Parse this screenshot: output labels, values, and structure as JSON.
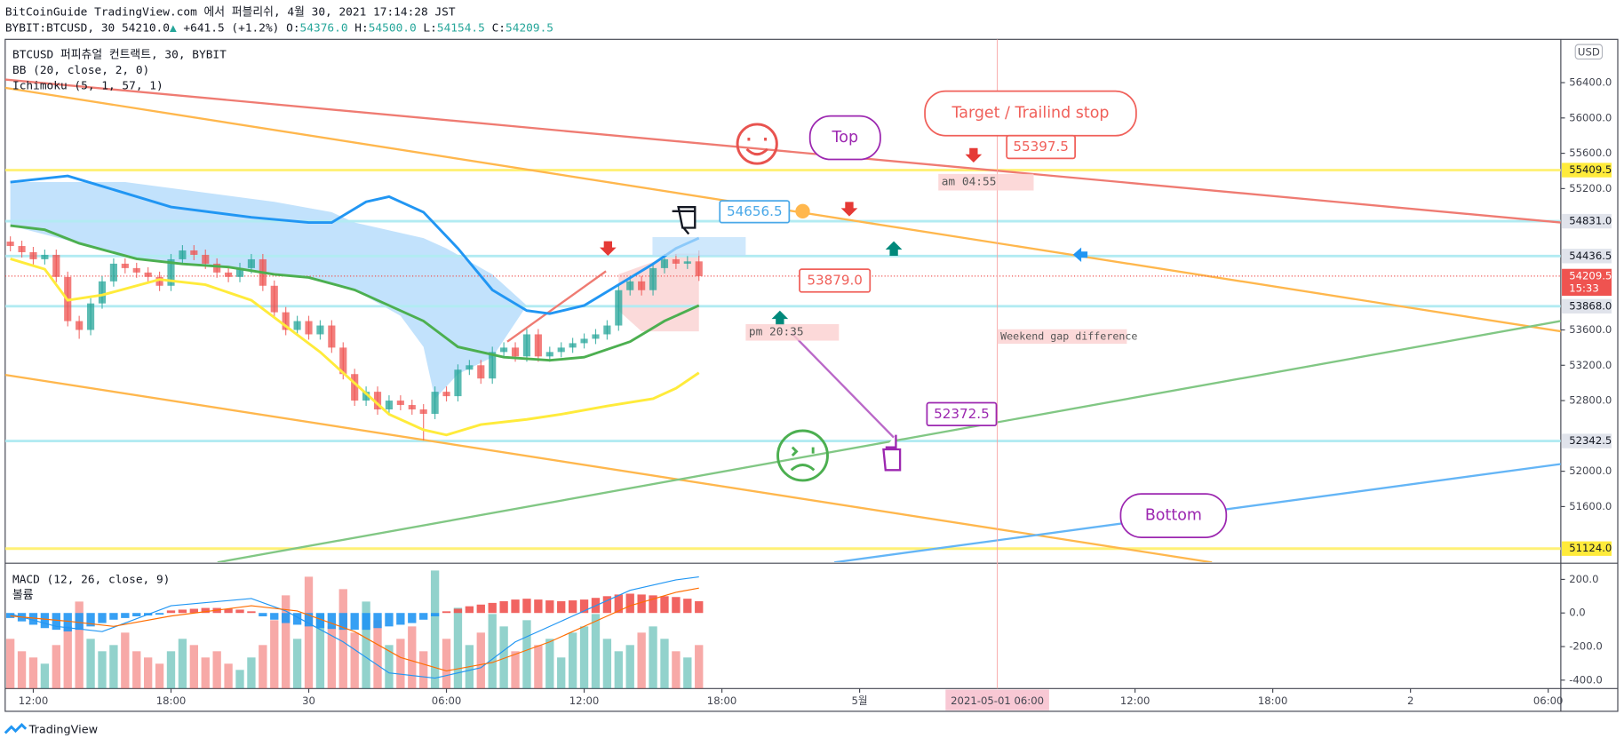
{
  "header": {
    "line1": "BitCoinGuide TradingView.com 에서 퍼블리쉬, 4월 30, 2021 17:14:28 JST",
    "symbol": "BYBIT:BTCUSD, 30",
    "price": "54210.0",
    "arrow": "▲",
    "change": "+641.5 (+1.2%)",
    "o_label": "O:",
    "o": "54376.0",
    "h_label": "H:",
    "h": "54500.0",
    "l_label": "L:",
    "l": "54154.5",
    "c_label": "C:",
    "c": "54209.5"
  },
  "legend": [
    "BTCUSD 퍼피츄얼 컨트랙트, 30, BYBIT",
    "BB (20, close, 2, 0)",
    "Ichimoku (5, 1, 57, 1)"
  ],
  "footer": "TradingView",
  "chart_data": {
    "type": "candlestick",
    "currency": "USD",
    "up_color": "#26a69a",
    "down_color": "#ef5350",
    "xlim": [
      -0.45,
      135.1
    ],
    "ylim": [
      50970,
      56890
    ],
    "yticks": [
      {
        "value": 56400,
        "label": "56400.0"
      },
      {
        "value": 56000,
        "label": "56000.0"
      },
      {
        "value": 55600,
        "label": "55600.0"
      },
      {
        "value": 55200,
        "label": "55200.0"
      },
      {
        "value": 53600,
        "label": "53600.0"
      },
      {
        "value": 53200,
        "label": "53200.0"
      },
      {
        "value": 52800,
        "label": "52800.0"
      },
      {
        "value": 52000,
        "label": "52000.0"
      },
      {
        "value": 51600,
        "label": "51600.0"
      }
    ],
    "xticks": [
      {
        "value": 2,
        "label": "12:00"
      },
      {
        "value": 14,
        "label": "18:00"
      },
      {
        "value": 26,
        "label": "30"
      },
      {
        "value": 38,
        "label": "06:00"
      },
      {
        "value": 50,
        "label": "12:00"
      },
      {
        "value": 62,
        "label": "18:00"
      },
      {
        "value": 74,
        "label": "5월"
      },
      {
        "value": 98,
        "label": "12:00"
      },
      {
        "value": 110,
        "label": "18:00"
      },
      {
        "value": 122,
        "label": "2"
      },
      {
        "value": 134,
        "label": "06:00"
      }
    ],
    "time_highlight": {
      "value": 86,
      "label": "2021-05-01 06:00"
    },
    "candles": [
      [
        54600,
        54660,
        54490,
        54550
      ],
      [
        54550,
        54610,
        54420,
        54480
      ],
      [
        54480,
        54540,
        54340,
        54400
      ],
      [
        54400,
        54510,
        54340,
        54450
      ],
      [
        54450,
        54510,
        54140,
        54200
      ],
      [
        54200,
        54260,
        53640,
        53700
      ],
      [
        53700,
        53760,
        53500,
        53600
      ],
      [
        53600,
        53960,
        53540,
        53900
      ],
      [
        53900,
        54210,
        53840,
        54150
      ],
      [
        54150,
        54410,
        54090,
        54350
      ],
      [
        54350,
        54410,
        54240,
        54300
      ],
      [
        54300,
        54360,
        54190,
        54250
      ],
      [
        54250,
        54310,
        54140,
        54200
      ],
      [
        54200,
        54260,
        54040,
        54100
      ],
      [
        54100,
        54460,
        54040,
        54400
      ],
      [
        54400,
        54560,
        54340,
        54500
      ],
      [
        54500,
        54560,
        54390,
        54450
      ],
      [
        54450,
        54510,
        54290,
        54350
      ],
      [
        54350,
        54410,
        54190,
        54250
      ],
      [
        54250,
        54310,
        54140,
        54200
      ],
      [
        54200,
        54360,
        54140,
        54300
      ],
      [
        54300,
        54460,
        54240,
        54400
      ],
      [
        54400,
        54460,
        54040,
        54100
      ],
      [
        54100,
        54160,
        53740,
        53800
      ],
      [
        53800,
        53860,
        53540,
        53600
      ],
      [
        53600,
        53760,
        53540,
        53700
      ],
      [
        53700,
        53760,
        53490,
        53550
      ],
      [
        53550,
        53710,
        53490,
        53650
      ],
      [
        53650,
        53710,
        53340,
        53400
      ],
      [
        53400,
        53460,
        53040,
        53100
      ],
      [
        53100,
        53160,
        52740,
        52800
      ],
      [
        52800,
        52960,
        52740,
        52900
      ],
      [
        52900,
        52960,
        52640,
        52700
      ],
      [
        52700,
        52860,
        52640,
        52800
      ],
      [
        52800,
        52860,
        52690,
        52750
      ],
      [
        52750,
        52810,
        52640,
        52700
      ],
      [
        52700,
        52760,
        52350,
        52650
      ],
      [
        52650,
        52960,
        52590,
        52900
      ],
      [
        52900,
        52960,
        52790,
        52850
      ],
      [
        52850,
        53210,
        52790,
        53150
      ],
      [
        53150,
        53260,
        53090,
        53200
      ],
      [
        53200,
        53260,
        52990,
        53050
      ],
      [
        53050,
        53410,
        52990,
        53350
      ],
      [
        53350,
        53460,
        53290,
        53400
      ],
      [
        53400,
        53460,
        53240,
        53300
      ],
      [
        53300,
        53610,
        53240,
        53550
      ],
      [
        53550,
        53610,
        53240,
        53300
      ],
      [
        53300,
        53410,
        53240,
        53350
      ],
      [
        53350,
        53460,
        53290,
        53400
      ],
      [
        53400,
        53510,
        53340,
        53450
      ],
      [
        53450,
        53560,
        53390,
        53500
      ],
      [
        53500,
        53610,
        53440,
        53550
      ],
      [
        53550,
        53710,
        53490,
        53650
      ],
      [
        53650,
        54110,
        53590,
        54050
      ],
      [
        54050,
        54210,
        53990,
        54150
      ],
      [
        54150,
        54210,
        53990,
        54050
      ],
      [
        54050,
        54360,
        53990,
        54300
      ],
      [
        54300,
        54460,
        54240,
        54400
      ],
      [
        54400,
        54460,
        54290,
        54350
      ],
      [
        54350,
        54436,
        54290,
        54376
      ],
      [
        54376,
        54500,
        54154.5,
        54209.5
      ]
    ],
    "cloud": [
      {
        "color": "#90caf9",
        "upper": [
          [
            0,
            55274
          ],
          [
            10,
            55274
          ],
          [
            23,
            55051
          ],
          [
            28,
            54933
          ],
          [
            30,
            54816
          ],
          [
            36,
            54640
          ],
          [
            38,
            54523
          ],
          [
            42,
            54229
          ],
          [
            45,
            53877
          ]
        ],
        "lower": [
          [
            0,
            54781
          ],
          [
            6,
            54581
          ],
          [
            11,
            54405
          ],
          [
            19,
            54312
          ],
          [
            26,
            54194
          ],
          [
            30,
            54053
          ],
          [
            34,
            53760
          ],
          [
            36,
            53408
          ],
          [
            37,
            52820
          ],
          [
            39,
            53100
          ],
          [
            42,
            53291
          ],
          [
            45,
            53877
          ]
        ]
      },
      {
        "color": "#f8bbbb",
        "upper": [
          [
            53,
            54230
          ],
          [
            58,
            54464
          ],
          [
            60,
            54464
          ]
        ],
        "lower": [
          [
            53,
            53819
          ],
          [
            55,
            53584
          ],
          [
            60,
            53584
          ]
        ]
      }
    ],
    "indicators": [
      {
        "color": "#2196f3",
        "points": [
          [
            0,
            55274
          ],
          [
            5,
            55344
          ],
          [
            8,
            55227
          ],
          [
            14,
            54992
          ],
          [
            21,
            54875
          ],
          [
            26,
            54816
          ],
          [
            28,
            54816
          ],
          [
            31,
            55051
          ],
          [
            33,
            55109
          ],
          [
            36,
            54933
          ],
          [
            39,
            54523
          ],
          [
            42,
            54053
          ],
          [
            45,
            53819
          ],
          [
            47,
            53784
          ],
          [
            50,
            53877
          ],
          [
            53,
            54112
          ],
          [
            56,
            54347
          ],
          [
            58,
            54523
          ],
          [
            60,
            54640
          ]
        ]
      },
      {
        "color": "#4caf50",
        "points": [
          [
            0,
            54781
          ],
          [
            3,
            54734
          ],
          [
            6,
            54581
          ],
          [
            11,
            54405
          ],
          [
            15,
            54347
          ],
          [
            19,
            54312
          ],
          [
            23,
            54229
          ],
          [
            26,
            54194
          ],
          [
            30,
            54053
          ],
          [
            36,
            53701
          ],
          [
            39,
            53408
          ],
          [
            43,
            53291
          ],
          [
            47,
            53256
          ],
          [
            50,
            53291
          ],
          [
            54,
            53467
          ],
          [
            57,
            53701
          ],
          [
            60,
            53877
          ]
        ]
      },
      {
        "color": "#ffeb3b",
        "points": [
          [
            0,
            54405
          ],
          [
            3,
            54288
          ],
          [
            5,
            53936
          ],
          [
            8,
            53995
          ],
          [
            13,
            54171
          ],
          [
            17,
            54112
          ],
          [
            21,
            53936
          ],
          [
            24,
            53643
          ],
          [
            27,
            53349
          ],
          [
            30,
            52997
          ],
          [
            33,
            52645
          ],
          [
            36,
            52469
          ],
          [
            38,
            52411
          ],
          [
            41,
            52528
          ],
          [
            45,
            52587
          ],
          [
            48,
            52645
          ],
          [
            52,
            52739
          ],
          [
            56,
            52821
          ],
          [
            58,
            52939
          ],
          [
            60,
            53115
          ]
        ]
      }
    ],
    "trendlines": [
      {
        "color": "#ef7b72",
        "points": [
          [
            -0.45,
            56435
          ],
          [
            135.1,
            54816
          ]
        ]
      },
      {
        "color": "#ffb74d",
        "points": [
          [
            -0.45,
            56341
          ],
          [
            135.1,
            53584
          ]
        ]
      },
      {
        "color": "#ffb74d",
        "points": [
          [
            -0.45,
            53091
          ],
          [
            104.7,
            50968
          ]
        ]
      },
      {
        "color": "#81c784",
        "points": [
          [
            18.05,
            50968
          ],
          [
            135.1,
            53701
          ]
        ]
      },
      {
        "color": "#64b5f6",
        "points": [
          [
            71.8,
            50968
          ],
          [
            135.1,
            52082
          ]
        ]
      },
      {
        "color": "#ef7b72",
        "points": [
          [
            43.3,
            53467
          ],
          [
            51.9,
            54265
          ]
        ]
      },
      {
        "color": "#ba68c8",
        "points": [
          [
            68.1,
            53560
          ],
          [
            77.2,
            52352
          ]
        ]
      }
    ],
    "hlines": [
      {
        "value": 55409.5,
        "label": "55409.5",
        "color": "#fff176",
        "label_bg": "#ffeb3b"
      },
      {
        "value": 54831,
        "label": "54831.0",
        "color": "#b2ebf2",
        "label_bg": "#e0e3eb"
      },
      {
        "value": 54436.5,
        "label": "54436.5",
        "color": "#b2ebf2",
        "label_bg": "#e0e3eb"
      },
      {
        "value": 53868,
        "label": "53868.0",
        "color": "#b2ebf2",
        "label_bg": "#e0e3eb"
      },
      {
        "value": 52342.5,
        "label": "52342.5",
        "color": "#b2ebf2",
        "label_bg": "#e0e3eb"
      },
      {
        "value": 51124,
        "label": "51124.0",
        "color": "#fff176",
        "label_bg": "#ffeb3b"
      }
    ],
    "last_price": {
      "value": 54209.5,
      "label": "54209.5",
      "countdown": "15:33",
      "color": "#ef5350"
    },
    "annotations": [
      {
        "text": "Target / Trailind stop",
        "color": "#f0605a"
      },
      {
        "text": "55397.5",
        "color": "#f0605a"
      },
      {
        "text": "am 04:55",
        "color": "#555555"
      },
      {
        "text": "Top",
        "color": "#9c27b0"
      },
      {
        "text": "54656.5",
        "color": "#4aa8e8"
      },
      {
        "text": "53879.0",
        "color": "#f0605a"
      },
      {
        "text": "pm 20:35",
        "color": "#555555"
      },
      {
        "text": "Weekend gap difference",
        "color": "#555555"
      },
      {
        "text": "52372.5",
        "color": "#9c27b0"
      },
      {
        "text": "Bottom",
        "color": "#9c27b0"
      }
    ],
    "macd": {
      "title": "MACD (12, 26, close, 9)",
      "ylim": [
        -450,
        290
      ],
      "yticks": [
        {
          "value": 200,
          "label": "200.0"
        },
        {
          "value": 0,
          "label": "0.0"
        },
        {
          "value": -200,
          "label": "-200.0"
        },
        {
          "value": -400,
          "label": "-400.0"
        }
      ],
      "pos_color": "#ef5350",
      "neg_color": "#2196f3",
      "histogram": [
        -30,
        -50,
        -70,
        -90,
        -100,
        -110,
        -100,
        -80,
        -60,
        -40,
        -30,
        -20,
        -15,
        -10,
        15,
        20,
        25,
        30,
        30,
        25,
        20,
        10,
        -20,
        -40,
        -60,
        -70,
        -80,
        -90,
        -95,
        -100,
        -100,
        -100,
        -90,
        -80,
        -70,
        -60,
        -40,
        -20,
        10,
        25,
        40,
        50,
        60,
        70,
        80,
        85,
        80,
        75,
        70,
        75,
        80,
        90,
        100,
        110,
        115,
        110,
        105,
        100,
        95,
        85,
        70
      ],
      "macd_line": {
        "color": "#2196f3",
        "points": [
          [
            0,
            -6
          ],
          [
            4,
            -80
          ],
          [
            8,
            -111
          ],
          [
            14,
            43
          ],
          [
            21,
            86
          ],
          [
            24,
            12
          ],
          [
            29,
            -172
          ],
          [
            33,
            -357
          ],
          [
            37,
            -388
          ],
          [
            41,
            -326
          ],
          [
            44,
            -172
          ],
          [
            48,
            -49
          ],
          [
            51,
            43
          ],
          [
            54,
            135
          ],
          [
            58,
            197
          ],
          [
            60,
            215
          ]
        ]
      },
      "signal_line": {
        "color": "#ff6d00",
        "points": [
          [
            0,
            -18
          ],
          [
            5,
            -49
          ],
          [
            9,
            -80
          ],
          [
            14,
            -18
          ],
          [
            21,
            43
          ],
          [
            25,
            12
          ],
          [
            30,
            -111
          ],
          [
            34,
            -265
          ],
          [
            38,
            -345
          ],
          [
            42,
            -295
          ],
          [
            47,
            -172
          ],
          [
            51,
            -49
          ],
          [
            54,
            43
          ],
          [
            58,
            123
          ],
          [
            60,
            148
          ]
        ]
      }
    },
    "volume": {
      "title": "볼륨",
      "ylim": [
        0,
        100
      ],
      "values": [
        40,
        30,
        25,
        20,
        35,
        50,
        70,
        40,
        30,
        35,
        45,
        30,
        25,
        20,
        30,
        40,
        35,
        25,
        30,
        20,
        15,
        25,
        35,
        55,
        75,
        40,
        90,
        60,
        50,
        80,
        45,
        70,
        55,
        35,
        40,
        50,
        30,
        95,
        40,
        65,
        35,
        45,
        60,
        50,
        30,
        55,
        35,
        40,
        25,
        45,
        50,
        60,
        40,
        30,
        35,
        45,
        50,
        40,
        30,
        25,
        35
      ]
    }
  }
}
